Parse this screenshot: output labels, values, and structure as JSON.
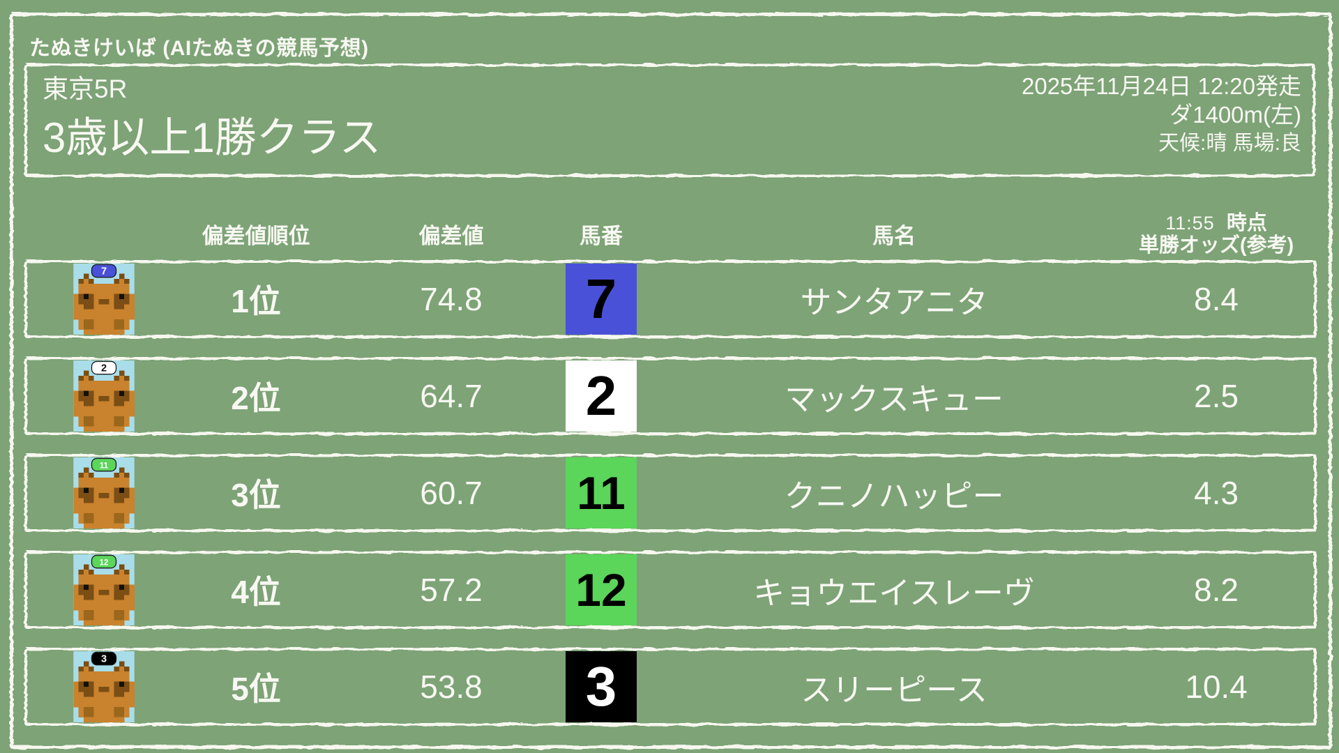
{
  "app": {
    "title": "たぬきけいば (AIたぬきの競馬予想)"
  },
  "race": {
    "venue_race": "東京5R",
    "name": "3歳以上1勝クラス",
    "date_start": "2025年11月24日 12:20発走",
    "course": "ダ1400m(左)",
    "conditions": "天候:晴 馬場:良"
  },
  "table": {
    "headers": {
      "rank": "偏差値順位",
      "score": "偏差値",
      "number": "馬番",
      "name": "馬名",
      "odds_time": "11:55",
      "odds_time_suffix": "時点",
      "odds_label": "単勝オッズ(参考)"
    },
    "rows": [
      {
        "rank": "1位",
        "score": "74.8",
        "number": "7",
        "number_bg": "#4a51d9",
        "number_color": "#000000",
        "name": "サンタアニタ",
        "odds": "8.4"
      },
      {
        "rank": "2位",
        "score": "64.7",
        "number": "2",
        "number_bg": "#ffffff",
        "number_color": "#000000",
        "name": "マックスキュー",
        "odds": "2.5"
      },
      {
        "rank": "3位",
        "score": "60.7",
        "number": "11",
        "number_bg": "#5bd55a",
        "number_color": "#000000",
        "name": "クニノハッピー",
        "odds": "4.3"
      },
      {
        "rank": "4位",
        "score": "57.2",
        "number": "12",
        "number_bg": "#5bd55a",
        "number_color": "#000000",
        "name": "キョウエイスレーヴ",
        "odds": "8.2"
      },
      {
        "rank": "5位",
        "score": "53.8",
        "number": "3",
        "number_bg": "#000000",
        "number_color": "#ffffff",
        "name": "スリーピース",
        "odds": "10.4"
      }
    ]
  },
  "colors": {
    "background": "#7da377",
    "border": "#f7f7ef",
    "text": "#f8f8f2"
  }
}
